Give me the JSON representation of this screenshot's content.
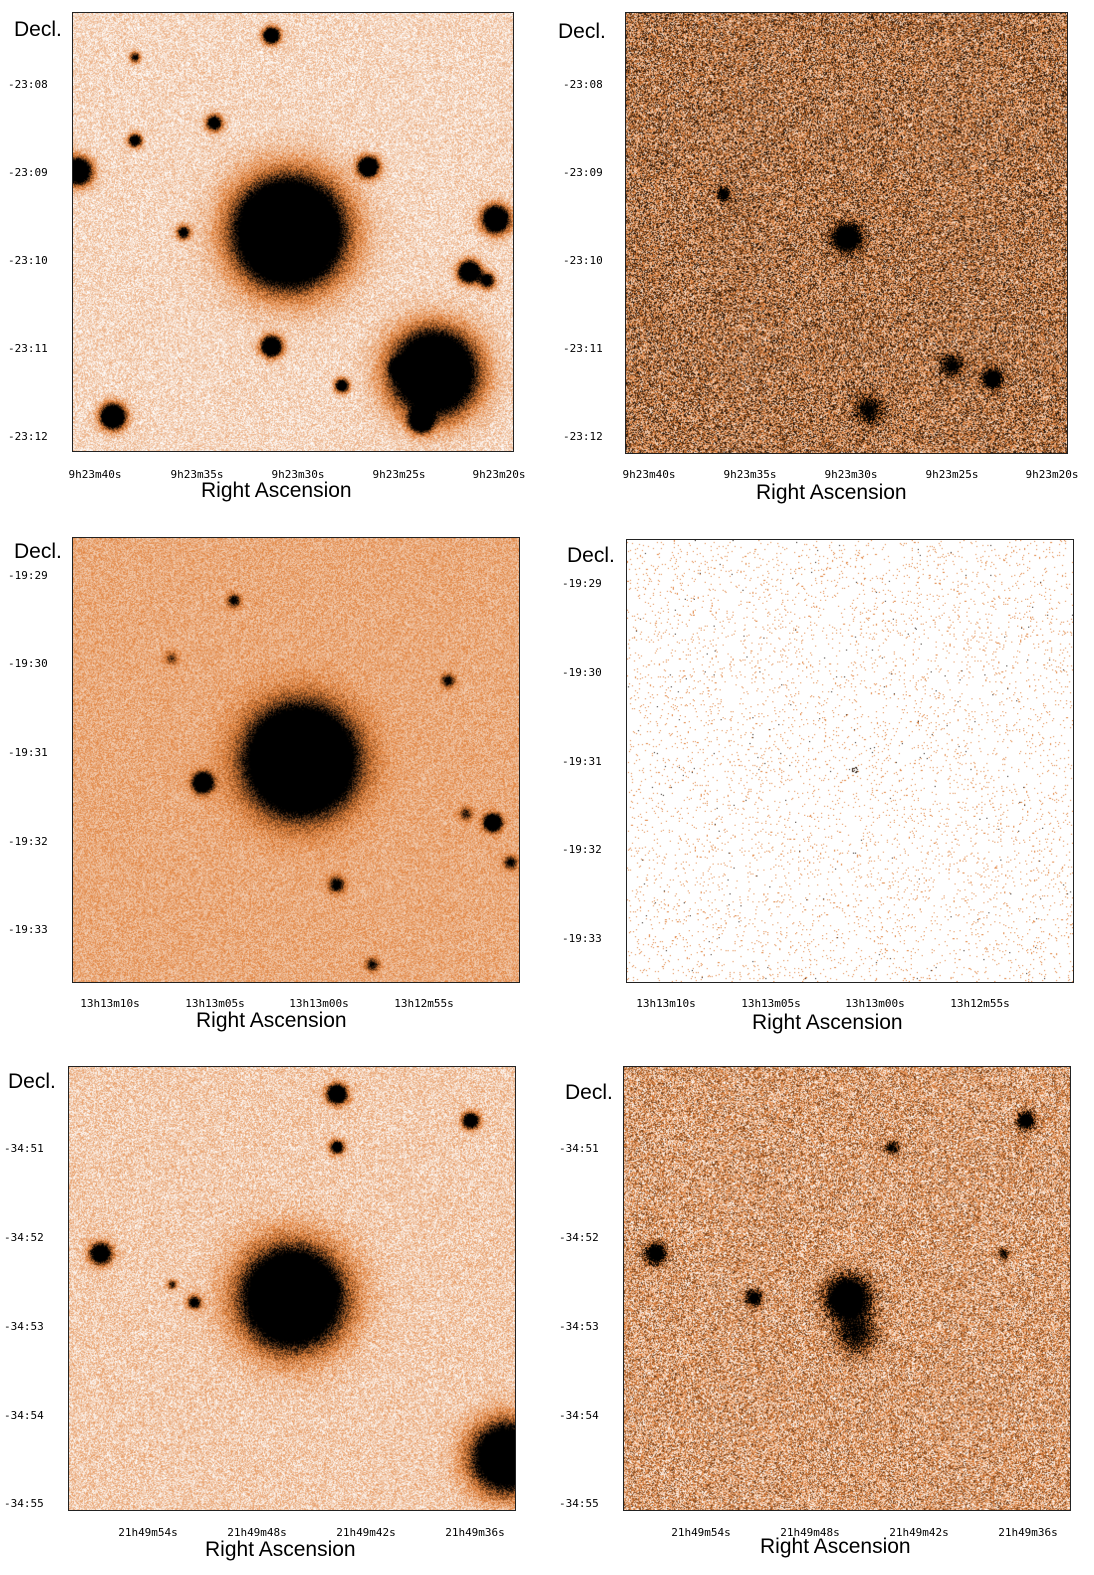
{
  "colormap": {
    "low": "#ffffff",
    "mid": "#e0803a",
    "high": "#000000"
  },
  "panels": [
    {
      "id": "p1",
      "dec_label": "Decl.",
      "ra_label": "Right Ascension",
      "yticks": [
        "-23:08",
        "-23:09",
        "-23:10",
        "-23:11",
        "-23:12"
      ],
      "xticks": [
        "9h23m40s",
        "9h23m35s",
        "9h23m30s",
        "9h23m25s",
        "9h23m20s"
      ],
      "image": {
        "style": "optical",
        "bg": 0.12,
        "noise": 0.22
      }
    },
    {
      "id": "p2",
      "dec_label": "Decl.",
      "ra_label": "Right Ascension",
      "yticks": [
        "-23:08",
        "-23:09",
        "-23:10",
        "-23:11",
        "-23:12"
      ],
      "xticks": [
        "9h23m40s",
        "9h23m35s",
        "9h23m30s",
        "9h23m25s",
        "9h23m20s"
      ],
      "image": {
        "style": "noisy",
        "bg": 0.45,
        "noise": 0.55
      }
    },
    {
      "id": "p3",
      "dec_label": "Decl.",
      "ra_label": "Right Ascension",
      "yticks": [
        "-19:29",
        "-19:30",
        "-19:31",
        "-19:32",
        "-19:33"
      ],
      "xticks": [
        "13h13m10s",
        "13h13m05s",
        "13h13m00s",
        "13h12m55s"
      ],
      "image": {
        "style": "optical",
        "bg": 0.3,
        "noise": 0.2
      }
    },
    {
      "id": "p4",
      "dec_label": "Decl.",
      "ra_label": "Right Ascension",
      "yticks": [
        "-19:29",
        "-19:30",
        "-19:31",
        "-19:32",
        "-19:33"
      ],
      "xticks": [
        "13h13m10s",
        "13h13m05s",
        "13h13m00s",
        "13h12m55s"
      ],
      "image": {
        "style": "sparse",
        "bg": 0.0,
        "noise": 0.0
      }
    },
    {
      "id": "p5",
      "dec_label": "Decl.",
      "ra_label": "Right Ascension",
      "yticks": [
        "-34:51",
        "-34:52",
        "-34:53",
        "-34:54",
        "-34:55"
      ],
      "xticks": [
        "21h49m54s",
        "21h49m48s",
        "21h49m42s",
        "21h49m36s"
      ],
      "image": {
        "style": "optical",
        "bg": 0.16,
        "noise": 0.25
      }
    },
    {
      "id": "p6",
      "dec_label": "Decl.",
      "ra_label": "Right Ascension",
      "yticks": [
        "-34:51",
        "-34:52",
        "-34:53",
        "-34:54",
        "-34:55"
      ],
      "xticks": [
        "21h49m54s",
        "21h49m48s",
        "21h49m42s",
        "21h49m36s"
      ],
      "image": {
        "style": "noisy",
        "bg": 0.3,
        "noise": 0.5
      }
    }
  ]
}
